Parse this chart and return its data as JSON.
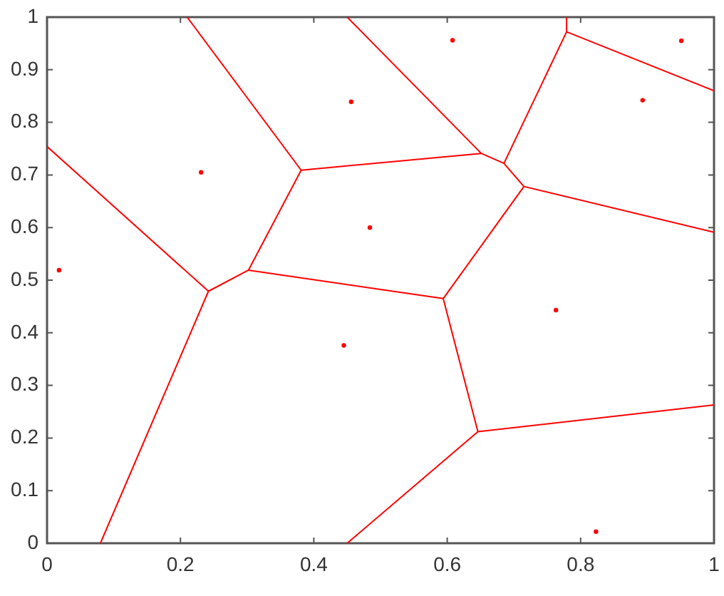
{
  "chart_data": {
    "type": "scatter",
    "xlim": [
      0,
      1
    ],
    "ylim": [
      0,
      1
    ],
    "xticks": [
      0,
      0.2,
      0.4,
      0.6,
      0.8,
      1
    ],
    "yticks": [
      0,
      0.1,
      0.2,
      0.3,
      0.4,
      0.5,
      0.6,
      0.7,
      0.8,
      0.9,
      1
    ],
    "marker": "circle",
    "series": [
      {
        "color": "#ff0000",
        "x": [
          0.018,
          0.231,
          0.456,
          0.484,
          0.608,
          0.951,
          0.893,
          0.445,
          0.763,
          0.823
        ],
        "values": [
          0.519,
          0.705,
          0.839,
          0.6,
          0.956,
          0.955,
          0.842,
          0.376,
          0.443,
          0.022
        ]
      },
      {
        "type": "line",
        "marker": "none",
        "color": "#ff0000",
        "x": [
          0,
          0.242,
          0.302,
          0.381,
          0.651,
          0.685,
          0.779,
          1,
          null,
          0.08,
          0.242,
          null,
          0.21,
          0.381,
          null,
          0.45,
          0.651,
          null,
          0.779,
          0.779,
          null,
          0.685,
          0.715,
          0.594,
          0.646,
          0.45,
          null,
          0.302,
          0.594,
          null,
          1,
          0.715,
          null,
          0.646,
          1
        ],
        "values": [
          0.754,
          0.479,
          0.519,
          0.709,
          0.741,
          0.722,
          0.972,
          0.86,
          null,
          0,
          0.479,
          null,
          1,
          0.709,
          null,
          1,
          0.741,
          null,
          1,
          0.972,
          null,
          0.722,
          0.678,
          0.465,
          0.212,
          0,
          null,
          0.519,
          0.465,
          null,
          0.591,
          0.678,
          null,
          0.212,
          0.263
        ]
      }
    ]
  }
}
